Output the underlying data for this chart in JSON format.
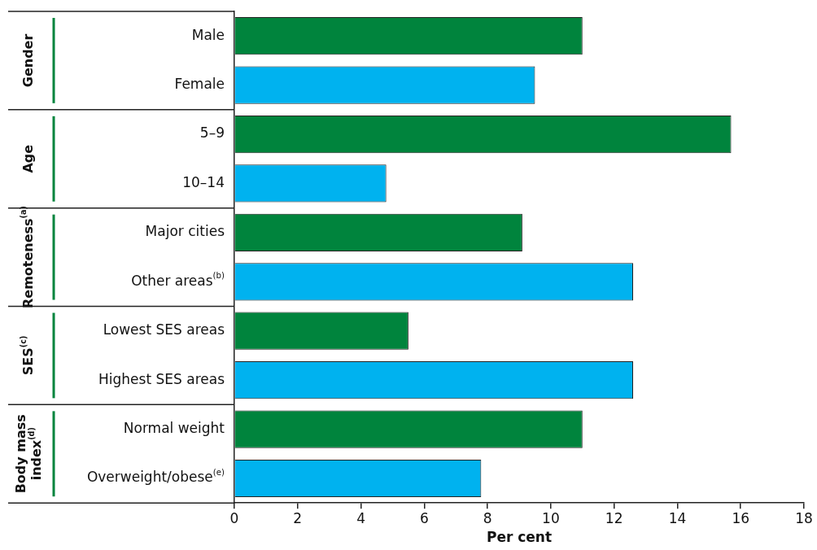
{
  "chart_data": {
    "type": "bar",
    "orientation": "horizontal",
    "categories": [
      "Male",
      "Female",
      "5–9",
      "10–14",
      "Major cities",
      "Other areas$^{(b)}$",
      "Lowest SES areas",
      "Highest SES areas",
      "Normal weight",
      "Overweight/obese$^{(e)}$"
    ],
    "values": [
      11.0,
      9.5,
      15.7,
      4.8,
      9.1,
      12.6,
      5.5,
      12.6,
      11.0,
      7.8
    ],
    "colors": [
      "#00843d",
      "#00b2ef",
      "#00843d",
      "#00b2ef",
      "#00843d",
      "#00b2ef",
      "#00843d",
      "#00b2ef",
      "#00843d",
      "#00b2ef"
    ],
    "xlabel": "Per cent",
    "xlim": [
      0,
      18
    ],
    "xticks": [
      0,
      2,
      4,
      6,
      8,
      10,
      12,
      14,
      16,
      18
    ],
    "annotations": [
      "Gender",
      "Age",
      "Remoteness$^{(a)}$",
      "SES$^{(c)}$",
      "Body mass index$^{(d)}$"
    ]
  }
}
